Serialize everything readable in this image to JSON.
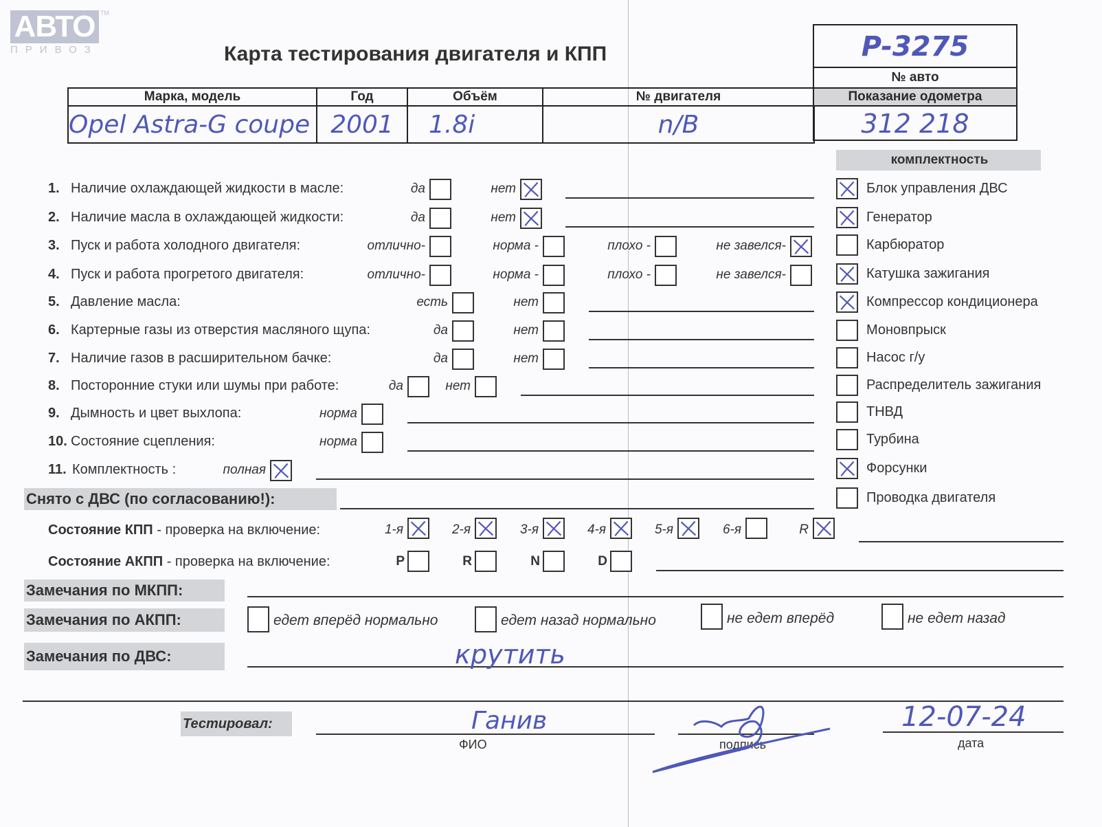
{
  "logo": {
    "brand": "АВТО",
    "sub": "ПРИВОЗ",
    "tm": "TM"
  },
  "title": "Карта тестирования двигателя  и КПП",
  "header": {
    "columns": [
      "Марка, модель",
      "Год",
      "Объём",
      "№ двигателя"
    ],
    "values": [
      "Opel Astra-G coupe",
      "2001",
      "1.8i",
      "n/B"
    ],
    "auto_number": "P-3275",
    "auto_number_label": "№ авто",
    "odometer_label": "Показание одометра",
    "odometer": "312 218"
  },
  "checks": [
    {
      "n": "1.",
      "label": "Наличие охлаждающей жидкости в масле:",
      "options": [
        {
          "t": "да",
          "c": false
        },
        {
          "t": "нет",
          "c": true
        }
      ]
    },
    {
      "n": "2.",
      "label": "Наличие масла в охлаждающей жидкости:",
      "options": [
        {
          "t": "да",
          "c": false
        },
        {
          "t": "нет",
          "c": true
        }
      ]
    },
    {
      "n": "3.",
      "label": "Пуск и работа холодного двигателя:",
      "options": [
        {
          "t": "отлично-",
          "c": false
        },
        {
          "t": "норма -",
          "c": false
        },
        {
          "t": "плохо -",
          "c": false
        },
        {
          "t": "не завелся-",
          "c": true
        }
      ]
    },
    {
      "n": "4.",
      "label": "Пуск и работа прогретого двигателя:",
      "options": [
        {
          "t": "отлично-",
          "c": false
        },
        {
          "t": "норма -",
          "c": false
        },
        {
          "t": "плохо -",
          "c": false
        },
        {
          "t": "не завелся-",
          "c": false
        }
      ]
    },
    {
      "n": "5.",
      "label": "Давление масла:",
      "options": [
        {
          "t": "есть",
          "c": false
        },
        {
          "t": "нет",
          "c": false
        }
      ]
    },
    {
      "n": "6.",
      "label": "Картерные газы из отверстия масляного щупа:",
      "options": [
        {
          "t": "да",
          "c": false
        },
        {
          "t": "нет",
          "c": false
        }
      ]
    },
    {
      "n": "7.",
      "label": "Наличие газов в расширительном бачке:",
      "options": [
        {
          "t": "да",
          "c": false
        },
        {
          "t": "нет",
          "c": false
        }
      ]
    },
    {
      "n": "8.",
      "label": "Посторонние стуки или шумы при работе:",
      "options": [
        {
          "t": "да",
          "c": false
        },
        {
          "t": "нет",
          "c": false
        }
      ]
    },
    {
      "n": "9.",
      "label": "Дымность и цвет выхлопа:",
      "options": [
        {
          "t": "норма",
          "c": false
        }
      ]
    },
    {
      "n": "10.",
      "label": "Состояние сцепления:",
      "options": [
        {
          "t": "норма",
          "c": false
        }
      ]
    },
    {
      "n": "11.",
      "label": "Комплектность :",
      "options": [
        {
          "t": "полная",
          "c": true
        }
      ]
    }
  ],
  "completeness": {
    "title": "комплектность",
    "items": [
      {
        "t": "Блок управления ДВС",
        "c": true
      },
      {
        "t": "Генератор",
        "c": true
      },
      {
        "t": "Карбюратор",
        "c": false
      },
      {
        "t": "Катушка зажигания",
        "c": true
      },
      {
        "t": "Компрессор кондиционера",
        "c": true
      },
      {
        "t": "Моновпрыск",
        "c": false
      },
      {
        "t": "Насос г/у",
        "c": false
      },
      {
        "t": "Распределитель зажигания",
        "c": false
      },
      {
        "t": "ТНВД",
        "c": false
      },
      {
        "t": "Турбина",
        "c": false
      },
      {
        "t": "Форсунки",
        "c": true
      },
      {
        "t": "Проводка двигателя",
        "c": false
      }
    ]
  },
  "removed_label": "Снято с ДВС (по согласованию!):",
  "kpp": {
    "bold": "Состояние КПП",
    "rest": " - проверка на включение:",
    "gears": [
      {
        "t": "1-я",
        "c": true
      },
      {
        "t": "2-я",
        "c": true
      },
      {
        "t": "3-я",
        "c": true
      },
      {
        "t": "4-я",
        "c": true
      },
      {
        "t": "5-я",
        "c": true
      },
      {
        "t": "6-я",
        "c": false
      },
      {
        "t": "R",
        "c": true
      }
    ]
  },
  "akpp": {
    "bold": "Состояние АКПП",
    "rest": " - проверка на включение:",
    "modes": [
      {
        "t": "P",
        "c": false
      },
      {
        "t": "R",
        "c": false
      },
      {
        "t": "N",
        "c": false
      },
      {
        "t": "D",
        "c": false
      }
    ]
  },
  "remarks": {
    "mkpp_label": "Замечания по МКПП:",
    "akpp_label": "Замечания по АКПП:",
    "akpp_options": [
      {
        "t": "едет вперёд нормально",
        "c": false
      },
      {
        "t": "едет назад нормально",
        "c": false
      },
      {
        "t": "не едет вперёд",
        "c": false
      },
      {
        "t": "не едет назад",
        "c": false
      }
    ],
    "dvs_label": "Замечания по ДВС:",
    "dvs_value": "крутить"
  },
  "footer": {
    "tested_label": "Тестировал:",
    "fio_label": "ФИО",
    "signature_label": "подпись",
    "date_label": "дата",
    "fio_value": "Ганив",
    "date_value": "12-07-24"
  },
  "colors": {
    "ink": "#4f58b8",
    "gray_band": "#d4d5d9"
  }
}
